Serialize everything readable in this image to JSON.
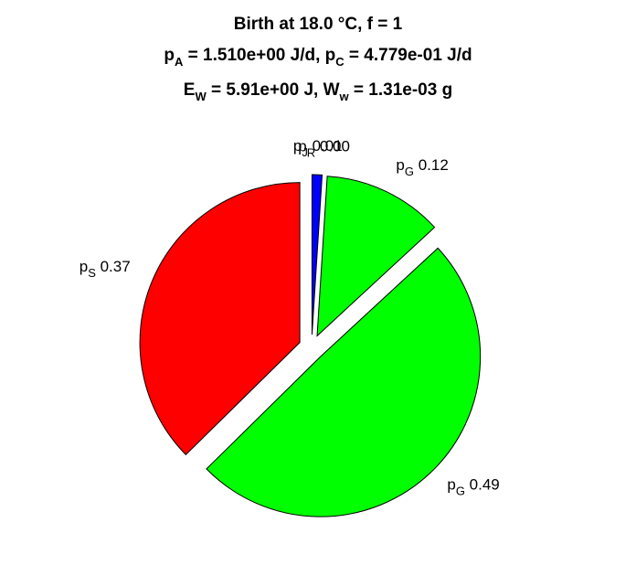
{
  "title": {
    "line1": "Birth at 18.0 °C, f = 1",
    "line2": "p_A = 1.510e+00 J/d, p_C = 4.779e-01 J/d",
    "line3": "E_W = 5.91e+00 J, W_w = 1.31e-03 g"
  },
  "chart_data": {
    "type": "pie",
    "title": "Birth at 18.0 °C, f = 1; p_A = 1.510e+00 J/d, p_C = 4.779e-01 J/d; E_W = 5.91e+00 J, W_w = 1.31e-03 g",
    "slices": [
      {
        "label": "p_J",
        "sub": "J",
        "value": 0.01,
        "display": "0.01",
        "color": "#0000ff"
      },
      {
        "label": "p_R",
        "sub": "R",
        "value": 0.0,
        "display": "0.00",
        "color": "#ffffff"
      },
      {
        "label": "p_G",
        "sub": "G",
        "value": 0.12,
        "display": "0.12",
        "color": "#00ff00"
      },
      {
        "label": "p_G",
        "sub": "G",
        "value": 0.49,
        "display": "0.49",
        "color": "#00ff00"
      },
      {
        "label": "p_S",
        "sub": "S",
        "value": 0.37,
        "display": "0.37",
        "color": "#ff0000"
      }
    ],
    "start_angle_deg": 90,
    "direction": "clockwise",
    "exploded": true
  }
}
